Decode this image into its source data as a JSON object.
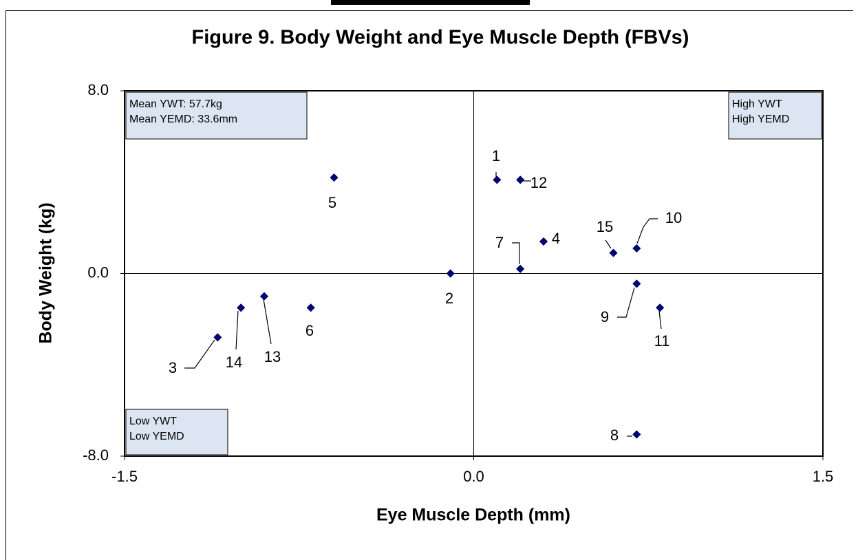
{
  "chart_data": {
    "type": "scatter",
    "title": "Figure 9.  Body Weight and Eye Muscle Depth (FBVs)",
    "x_label": "Eye Muscle Depth (mm)",
    "y_label": "Body Weight (kg)",
    "x": [
      0.1,
      -0.1,
      -1.1,
      0.3,
      -0.6,
      -0.7,
      0.2,
      0.7,
      0.7,
      0.7,
      0.8,
      0.2,
      -0.9,
      -1.0,
      0.6
    ],
    "values": [
      4.1,
      0,
      -2.8,
      1.4,
      4.2,
      -1.5,
      0.2,
      -7.05,
      -0.45,
      1.1,
      -1.5,
      4.1,
      -1.0,
      -1.5,
      0.9
    ],
    "point_labels": [
      "1",
      "2",
      "3",
      "4",
      "5",
      "6",
      "7",
      "8",
      "9",
      "10",
      "11",
      "12",
      "13",
      "14",
      "15"
    ],
    "color": "#000080",
    "xlim": [
      -1.5,
      1.5
    ],
    "xticks": [
      -1.5,
      {
        "value": 0,
        "label": "0.0"
      },
      1.5
    ],
    "ylim": [
      -8,
      8
    ],
    "yticks": [
      {
        "value": -8,
        "label": "-8.0"
      },
      {
        "value": 0,
        "label": "0.0"
      },
      {
        "value": 8,
        "label": "8.0"
      }
    ],
    "annotations": {
      "top_left": [
        "Mean YWT: 57.7kg",
        "Mean YEMD: 33.6mm"
      ],
      "top_right": [
        "High YWT",
        "High YEMD"
      ],
      "bottom_left": [
        "Low YWT",
        "Low YEMD"
      ]
    }
  }
}
